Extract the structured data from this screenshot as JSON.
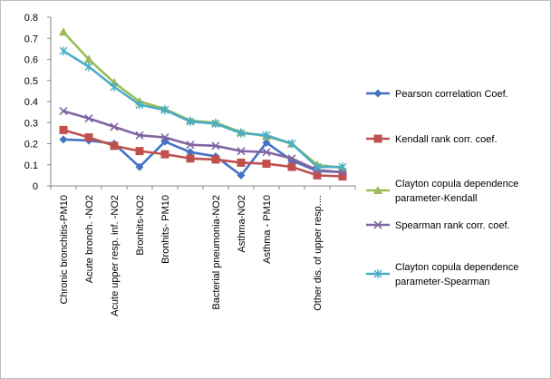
{
  "chart_data": {
    "type": "line",
    "categories": [
      "Chronic bronchitis-PM10",
      "Acute bronch. -NO2",
      "Acute upper resp. inf. -NO2",
      "Bronhits-NO2",
      "Bronhits- PM10",
      "",
      "Bacterial pneumonia-NO2",
      "Asthma-NO2",
      "Asthma - PM10",
      "",
      "Other dis. of upper resp....",
      ""
    ],
    "ylim": [
      0,
      0.8
    ],
    "yticks": [
      "0",
      "0.1",
      "0.2",
      "0.3",
      "0.4",
      "0.5",
      "0.6",
      "0.7",
      "0.8"
    ],
    "grid": false,
    "legend_position": "right",
    "series": [
      {
        "name": "Pearson correlation Coef.",
        "color": "#4472c4",
        "marker": "diamond",
        "values": [
          0.22,
          0.215,
          0.2,
          0.09,
          0.21,
          0.16,
          0.14,
          0.05,
          0.205,
          0.12,
          0.07,
          0.065
        ]
      },
      {
        "name": "Kendall rank corr. coef.",
        "color": "#c0504d",
        "marker": "square",
        "values": [
          0.265,
          0.23,
          0.19,
          0.165,
          0.15,
          0.13,
          0.125,
          0.11,
          0.105,
          0.09,
          0.05,
          0.045
        ]
      },
      {
        "name": [
          "Clayton copula dependence",
          "parameter-Kendall"
        ],
        "color": "#9bbb59",
        "marker": "triangle",
        "values": [
          0.73,
          0.6,
          0.49,
          0.4,
          0.365,
          0.31,
          0.3,
          0.255,
          0.235,
          0.2,
          0.1,
          0.085
        ]
      },
      {
        "name": "Spearman rank corr. coef.",
        "color": "#8064a2",
        "marker": "x",
        "values": [
          0.355,
          0.32,
          0.28,
          0.24,
          0.23,
          0.195,
          0.19,
          0.165,
          0.16,
          0.13,
          0.075,
          0.065
        ]
      },
      {
        "name": [
          "Clayton copula dependence",
          "parameter-Spearman"
        ],
        "color": "#4bacc6",
        "marker": "star",
        "values": [
          0.64,
          0.565,
          0.47,
          0.385,
          0.36,
          0.305,
          0.295,
          0.25,
          0.24,
          0.2,
          0.09,
          0.09
        ]
      }
    ]
  }
}
